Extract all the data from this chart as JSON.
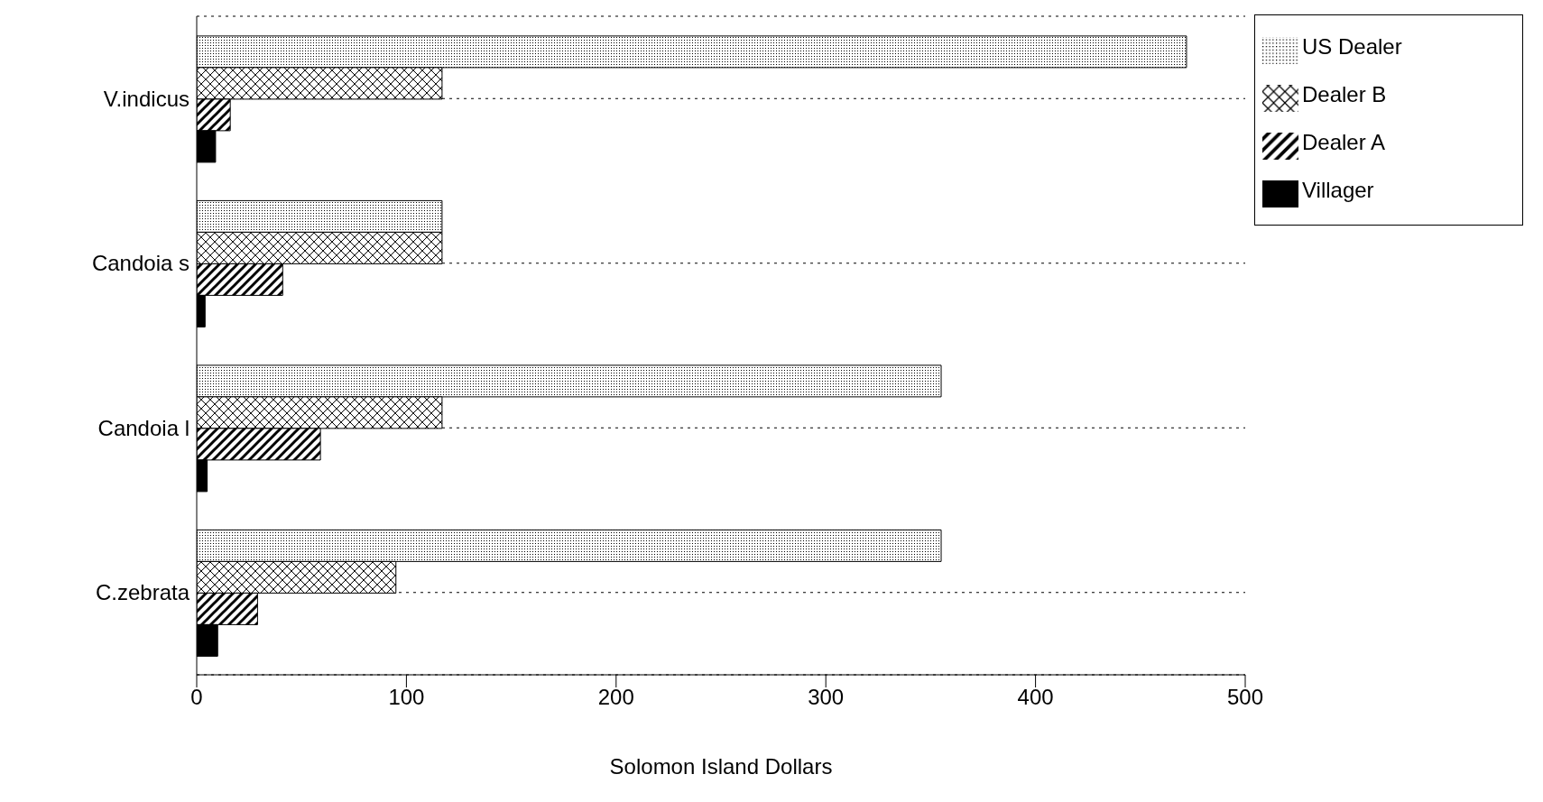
{
  "chart_data": {
    "type": "bar",
    "orientation": "horizontal",
    "xlabel": "Solomon Island Dollars",
    "categories": [
      "V.indicus",
      "Candoia s",
      "Candoia l",
      "C.zebrata"
    ],
    "series": [
      {
        "name": "Villager",
        "color": "#000000",
        "values": [
          9,
          4,
          5,
          10
        ]
      },
      {
        "name": "Dealer A",
        "color": "#000000",
        "values": [
          16,
          41,
          59,
          29
        ]
      },
      {
        "name": "Dealer B",
        "color": "#000000",
        "values": [
          117,
          117,
          117,
          95
        ]
      },
      {
        "name": "US Dealer",
        "color": "#000000",
        "values": [
          472,
          117,
          355,
          355
        ]
      }
    ],
    "xlim": [
      0,
      500
    ],
    "xticks": [
      0,
      100,
      200,
      300,
      400,
      500
    ],
    "grid": "y",
    "legend": "top right"
  }
}
